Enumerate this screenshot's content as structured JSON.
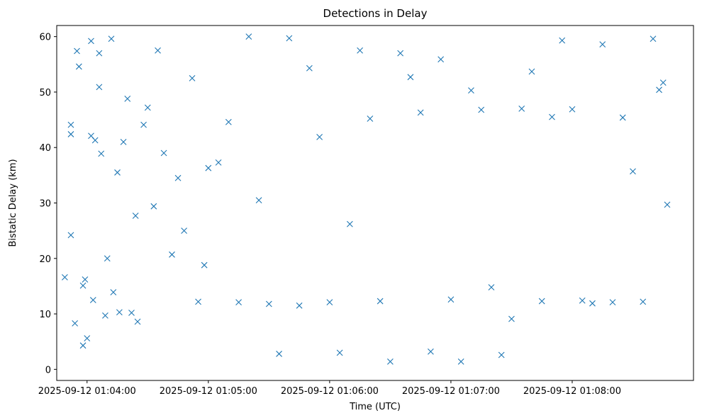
{
  "chart_data": {
    "type": "scatter",
    "title": "Detections in Delay",
    "xlabel": "Time (UTC)",
    "ylabel": "Bistatic Delay (km)",
    "x_unit": "time",
    "xlim": [
      "2025-09-12 01:03:45",
      "2025-09-12 01:09:00"
    ],
    "ylim": [
      -2,
      62
    ],
    "x_ticks": [
      "2025-09-12 01:04:00",
      "2025-09-12 01:05:00",
      "2025-09-12 01:06:00",
      "2025-09-12 01:07:00",
      "2025-09-12 01:08:00"
    ],
    "y_ticks": [
      0,
      10,
      20,
      30,
      40,
      50,
      60
    ],
    "marker": "x",
    "color": "#1f77b4",
    "grid": false,
    "legend": "none",
    "series": [
      {
        "x": [
          "01:03:49",
          "01:03:52",
          "01:03:52",
          "01:03:52",
          "01:03:54",
          "01:03:55",
          "01:03:56",
          "01:03:58",
          "01:03:58",
          "01:03:59",
          "01:04:00",
          "01:04:02",
          "01:04:02",
          "01:04:03",
          "01:04:04",
          "01:04:06",
          "01:04:06",
          "01:04:07",
          "01:04:09",
          "01:04:10",
          "01:04:12",
          "01:04:13",
          "01:04:15",
          "01:04:16",
          "01:04:18",
          "01:04:20",
          "01:04:22",
          "01:04:24",
          "01:04:25",
          "01:04:28",
          "01:04:30",
          "01:04:33",
          "01:04:35",
          "01:04:38",
          "01:04:42",
          "01:04:45",
          "01:04:48",
          "01:04:52",
          "01:04:55",
          "01:04:58",
          "01:05:00",
          "01:05:05",
          "01:05:10",
          "01:05:15",
          "01:05:20",
          "01:05:25",
          "01:05:30",
          "01:05:35",
          "01:05:40",
          "01:05:45",
          "01:05:50",
          "01:05:55",
          "01:06:00",
          "01:06:05",
          "01:06:10",
          "01:06:15",
          "01:06:20",
          "01:06:25",
          "01:06:30",
          "01:06:35",
          "01:06:40",
          "01:06:45",
          "01:06:50",
          "01:06:55",
          "01:07:00",
          "01:07:05",
          "01:07:10",
          "01:07:15",
          "01:07:20",
          "01:07:25",
          "01:07:30",
          "01:07:35",
          "01:07:40",
          "01:07:45",
          "01:07:50",
          "01:07:55",
          "01:08:00",
          "01:08:05",
          "01:08:10",
          "01:08:15",
          "01:08:20",
          "01:08:25",
          "01:08:30",
          "01:08:35",
          "01:08:40",
          "01:08:43",
          "01:08:45",
          "01:08:47"
        ],
        "y": [
          16.6,
          24.2,
          44.1,
          42.4,
          8.3,
          57.4,
          54.6,
          15.1,
          4.3,
          16.2,
          5.6,
          42.1,
          59.2,
          12.5,
          41.3,
          57.0,
          50.9,
          38.9,
          9.7,
          20.0,
          59.6,
          13.9,
          35.5,
          10.3,
          41.0,
          48.8,
          10.2,
          27.7,
          8.6,
          44.1,
          47.2,
          29.4,
          57.5,
          39.0,
          20.7,
          34.5,
          25.0,
          52.5,
          12.2,
          18.8,
          36.3,
          37.3,
          44.6,
          12.1,
          60.0,
          30.5,
          11.8,
          2.8,
          59.7,
          11.5,
          54.3,
          41.9,
          12.1,
          3.0,
          26.2,
          57.5,
          45.2,
          12.3,
          1.4,
          57.0,
          52.7,
          46.3,
          3.2,
          55.9,
          12.6,
          1.4,
          50.3,
          46.8,
          14.8,
          2.6,
          9.1,
          47.0,
          53.7,
          12.3,
          45.5,
          59.3,
          46.9,
          12.4,
          11.9,
          58.6,
          12.1,
          45.4,
          35.7,
          12.2,
          59.6,
          50.4,
          51.7,
          29.7
        ]
      }
    ]
  }
}
